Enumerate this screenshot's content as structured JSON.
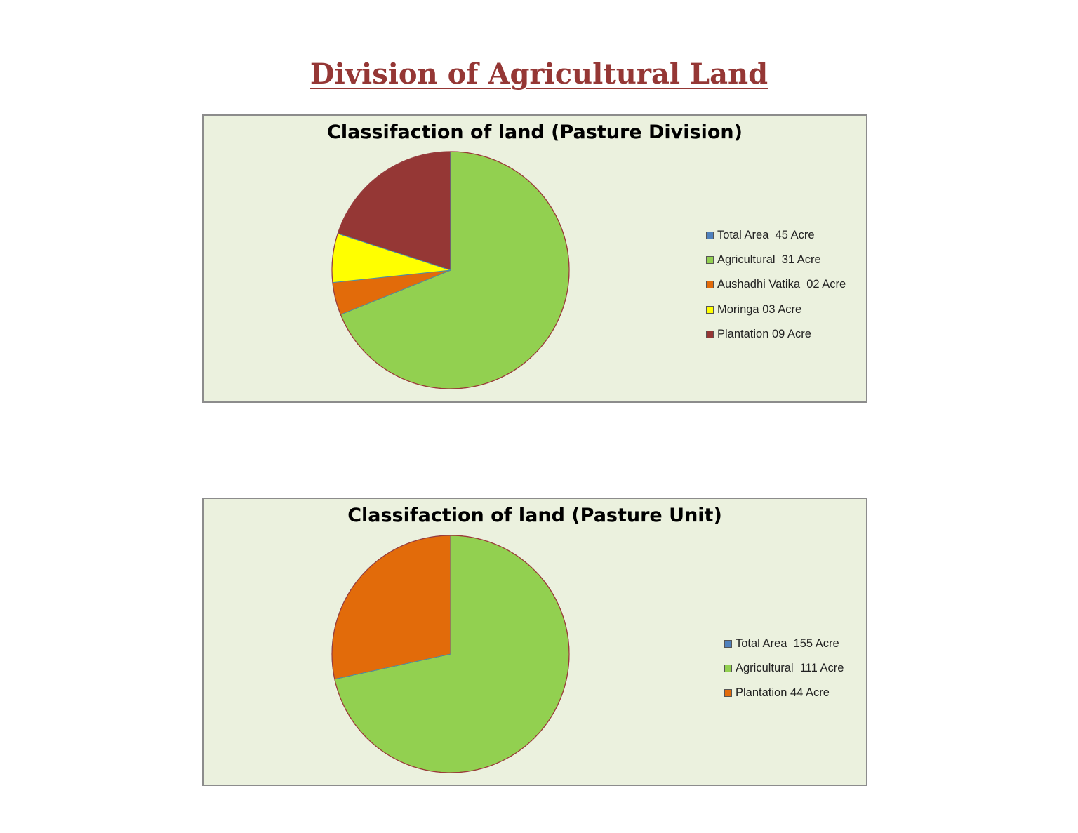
{
  "page": {
    "title": "Division of Agricultural Land"
  },
  "chart_data": [
    {
      "type": "pie",
      "title": "Classifaction of land (Pasture Division)",
      "unit": "Acre",
      "categories": [
        "Total Area",
        "Agricultural",
        "Aushadhi Vatika",
        "Moringa",
        "Plantation"
      ],
      "values": [
        45,
        31,
        2,
        3,
        9
      ],
      "slice_values": [
        0,
        31,
        2,
        3,
        9
      ],
      "colors": [
        "#4f81bd",
        "#92d050",
        "#e26b0a",
        "#ffff00",
        "#953735"
      ],
      "legend_labels": [
        "Total Area  45 Acre",
        "Agricultural  31 Acre",
        "Aushadhi Vatika  02 Acre",
        "Moringa 03 Acre",
        "Plantation 09 Acre"
      ],
      "legend_position": "right"
    },
    {
      "type": "pie",
      "title": "Classifaction of land (Pasture Unit)",
      "unit": "Acre",
      "categories": [
        "Total Area",
        "Agricultural",
        "Plantation"
      ],
      "values": [
        155,
        111,
        44
      ],
      "slice_values": [
        0,
        111,
        44
      ],
      "colors": [
        "#4f81bd",
        "#92d050",
        "#e26b0a"
      ],
      "legend_labels": [
        "Total Area  155 Acre",
        "Agricultural  111 Acre",
        "Plantation 44 Acre"
      ],
      "legend_position": "right"
    }
  ]
}
